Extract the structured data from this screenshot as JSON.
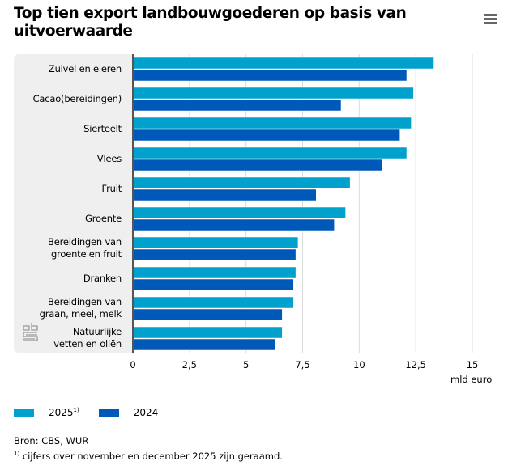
{
  "header": {
    "title": "Top tien export landbouwgoederen op basis van uitvoerwaarde",
    "menu_icon": "hamburger-menu-icon"
  },
  "logo": "cbs-logo-icon",
  "chart_data": {
    "type": "bar",
    "orientation": "horizontal",
    "title": "Top tien export landbouwgoederen op basis van uitvoerwaarde",
    "xlabel": "mld euro",
    "ylabel": "",
    "xlim": [
      0,
      15
    ],
    "x_ticks": [
      "0",
      "2,5",
      "5",
      "7,5",
      "10",
      "12,5",
      "15"
    ],
    "x_tick_values": [
      0,
      2.5,
      5,
      7.5,
      10,
      12.5,
      15
    ],
    "grid": true,
    "legend_position": "bottom-left",
    "categories": [
      "Zuivel en eieren",
      "Cacao(bereidingen)",
      "Sierteelt",
      "Vlees",
      "Fruit",
      "Groente",
      "Bereidingen van groente en fruit",
      "Dranken",
      "Bereidingen van graan, meel, melk",
      "Natuurlijke vetten en oliën"
    ],
    "category_lines": [
      [
        "Zuivel en eieren"
      ],
      [
        "Cacao(bereidingen)"
      ],
      [
        "Sierteelt"
      ],
      [
        "Vlees"
      ],
      [
        "Fruit"
      ],
      [
        "Groente"
      ],
      [
        "Bereidingen van",
        "groente en fruit"
      ],
      [
        "Dranken"
      ],
      [
        "Bereidingen van",
        "graan, meel, melk"
      ],
      [
        "Natuurlijke",
        "vetten en oliën"
      ]
    ],
    "series": [
      {
        "name": "2025",
        "footnote_mark": "1)",
        "color": "#00a1cd",
        "values": [
          13.3,
          12.4,
          12.3,
          12.1,
          9.6,
          9.4,
          7.3,
          7.2,
          7.1,
          6.6
        ]
      },
      {
        "name": "2024",
        "footnote_mark": "",
        "color": "#0058b8",
        "values": [
          12.1,
          9.2,
          11.8,
          11.0,
          8.1,
          8.9,
          7.2,
          7.1,
          6.6,
          6.3
        ]
      }
    ]
  },
  "legend": {
    "items": [
      {
        "label": "2025",
        "sup": "1)",
        "color": "#00a1cd"
      },
      {
        "label": "2024",
        "sup": "",
        "color": "#0058b8"
      }
    ]
  },
  "footer": {
    "source": "Bron: CBS, WUR",
    "note_mark": "1)",
    "note": " cijfers over november en december 2025 zijn geraamd."
  }
}
